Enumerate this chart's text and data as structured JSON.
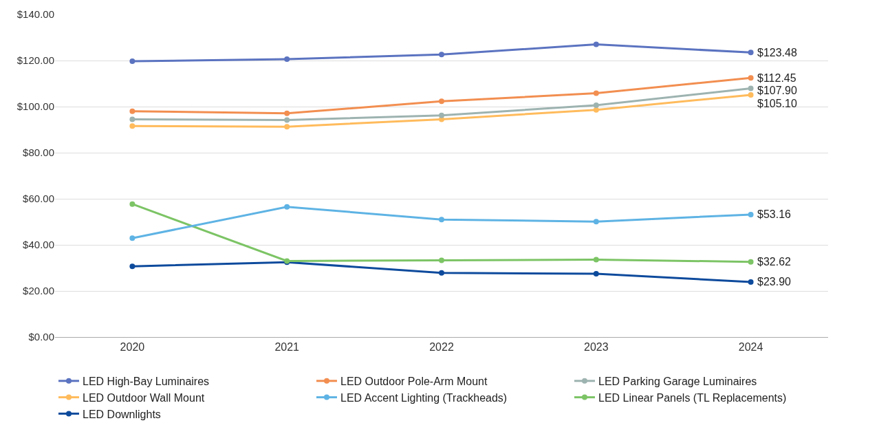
{
  "chart_data": {
    "type": "line",
    "categories": [
      "2020",
      "2021",
      "2022",
      "2023",
      "2024"
    ],
    "series": [
      {
        "name": "LED High-Bay Luminaires",
        "color": "#5b73c0",
        "values": [
          119.7,
          120.6,
          122.6,
          127.0,
          123.48
        ],
        "value_labels": [
          null,
          null,
          null,
          null,
          "$123.48"
        ]
      },
      {
        "name": "LED Outdoor Pole-Arm Mount",
        "color": "#f28e50",
        "values": [
          98.0,
          97.1,
          102.3,
          105.8,
          112.45
        ],
        "value_labels": [
          null,
          null,
          null,
          null,
          "$112.45"
        ]
      },
      {
        "name": "LED Parking Garage Luminaires",
        "color": "#9db3b0",
        "values": [
          94.5,
          94.2,
          96.2,
          100.6,
          107.9
        ],
        "value_labels": [
          null,
          null,
          null,
          null,
          "$107.90"
        ]
      },
      {
        "name": "LED Outdoor Wall Mount",
        "color": "#ffbb5c",
        "values": [
          91.6,
          91.3,
          94.5,
          98.6,
          105.1
        ],
        "value_labels": [
          null,
          null,
          null,
          null,
          "$105.10"
        ]
      },
      {
        "name": "LED Accent Lighting (Trackheads)",
        "color": "#5eb3e4",
        "values": [
          42.9,
          56.5,
          51.0,
          50.1,
          53.16
        ],
        "value_labels": [
          null,
          null,
          null,
          null,
          "$53.16"
        ]
      },
      {
        "name": "LED Linear Panels (TL Replacements)",
        "color": "#7cc465",
        "values": [
          57.7,
          33.0,
          33.3,
          33.6,
          32.62
        ],
        "value_labels": [
          null,
          null,
          null,
          null,
          "$32.62"
        ]
      },
      {
        "name": "LED Downlights",
        "color": "#0d4a9c",
        "values": [
          30.7,
          32.5,
          27.8,
          27.5,
          23.9
        ],
        "value_labels": [
          null,
          null,
          null,
          null,
          "$23.90"
        ]
      }
    ],
    "ylim": [
      0,
      140
    ],
    "yticks": [
      {
        "value": 0,
        "label": "$0.00"
      },
      {
        "value": 20,
        "label": "$20.00"
      },
      {
        "value": 40,
        "label": "$40.00"
      },
      {
        "value": 60,
        "label": "$60.00"
      },
      {
        "value": 80,
        "label": "$80.00"
      },
      {
        "value": 100,
        "label": "$100.00"
      },
      {
        "value": 120,
        "label": "$120.00"
      },
      {
        "value": 140,
        "label": "$140.00"
      }
    ],
    "grid": "y",
    "legend": "bottom",
    "marker": "circle",
    "line_style": "solid"
  }
}
